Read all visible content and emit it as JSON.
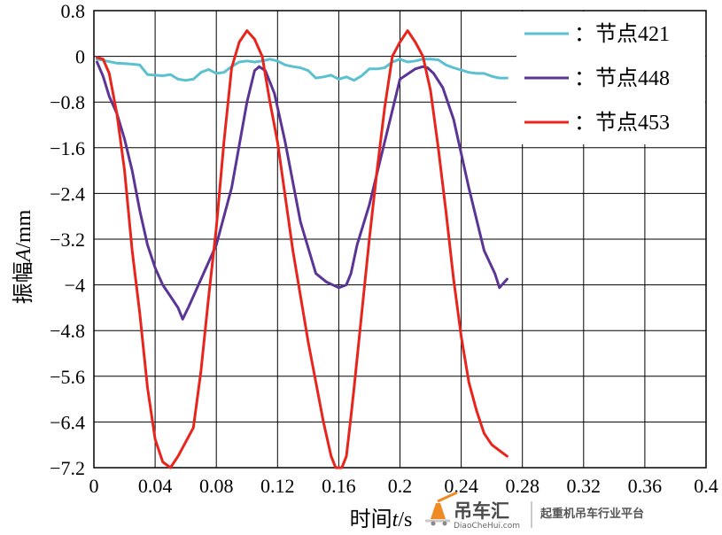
{
  "chart_data": {
    "type": "line",
    "xlabel_prefix": "时间",
    "xlabel_var": "t",
    "xlabel_unit": "/s",
    "ylabel_prefix": "振幅",
    "ylabel_var": "A",
    "ylabel_unit": "/mm",
    "xlim": [
      0,
      0.4
    ],
    "ylim": [
      -7.2,
      0.8
    ],
    "xticks": [
      "0",
      "0.04",
      "0.08",
      "0.12",
      "0.16",
      "0.2",
      "0.24",
      "0.28",
      "0.32",
      "0.36",
      "0.4"
    ],
    "yticks": [
      "0.8",
      "0",
      "−0.8",
      "−1.6",
      "−2.4",
      "−3.2",
      "−4",
      "−4.8",
      "−5.6",
      "−6.4",
      "−7.2"
    ],
    "xtick_values": [
      0,
      0.04,
      0.08,
      0.12,
      0.16,
      0.2,
      0.24,
      0.28,
      0.32,
      0.36,
      0.4
    ],
    "ytick_values": [
      0.8,
      0,
      -0.8,
      -1.6,
      -2.4,
      -3.2,
      -4,
      -4.8,
      -5.6,
      -6.4,
      -7.2
    ],
    "grid": true,
    "legend_position": "top-right",
    "series": [
      {
        "name": "：节点421",
        "color": "#5bc1d0",
        "x": [
          0.002,
          0.008,
          0.015,
          0.022,
          0.03,
          0.035,
          0.045,
          0.05,
          0.055,
          0.06,
          0.065,
          0.07,
          0.075,
          0.08,
          0.085,
          0.09,
          0.095,
          0.1,
          0.105,
          0.11,
          0.115,
          0.12,
          0.125,
          0.13,
          0.135,
          0.14,
          0.145,
          0.15,
          0.155,
          0.16,
          0.165,
          0.17,
          0.175,
          0.18,
          0.185,
          0.19,
          0.195,
          0.2,
          0.205,
          0.21,
          0.215,
          0.22,
          0.225,
          0.23,
          0.235,
          0.24,
          0.245,
          0.25,
          0.255,
          0.26,
          0.265,
          0.27
        ],
        "y": [
          -0.05,
          -0.08,
          -0.12,
          -0.13,
          -0.15,
          -0.32,
          -0.34,
          -0.32,
          -0.4,
          -0.42,
          -0.4,
          -0.28,
          -0.23,
          -0.3,
          -0.28,
          -0.18,
          -0.1,
          -0.08,
          -0.1,
          -0.08,
          -0.05,
          -0.08,
          -0.15,
          -0.18,
          -0.2,
          -0.25,
          -0.38,
          -0.36,
          -0.33,
          -0.4,
          -0.36,
          -0.42,
          -0.34,
          -0.22,
          -0.22,
          -0.2,
          -0.1,
          -0.05,
          -0.1,
          -0.08,
          -0.05,
          -0.05,
          -0.06,
          -0.15,
          -0.2,
          -0.24,
          -0.28,
          -0.3,
          -0.3,
          -0.35,
          -0.38,
          -0.38
        ]
      },
      {
        "name": "：节点448",
        "color": "#5b3596",
        "x": [
          0.002,
          0.006,
          0.01,
          0.015,
          0.02,
          0.025,
          0.03,
          0.035,
          0.04,
          0.045,
          0.05,
          0.055,
          0.058,
          0.062,
          0.07,
          0.08,
          0.09,
          0.1,
          0.105,
          0.108,
          0.112,
          0.118,
          0.125,
          0.135,
          0.145,
          0.152,
          0.16,
          0.165,
          0.168,
          0.172,
          0.18,
          0.19,
          0.2,
          0.21,
          0.215,
          0.218,
          0.222,
          0.228,
          0.235,
          0.245,
          0.255,
          0.262,
          0.265,
          0.27
        ],
        "y": [
          -0.1,
          -0.35,
          -0.7,
          -1.0,
          -1.45,
          -2.0,
          -2.7,
          -3.3,
          -3.7,
          -4.0,
          -4.2,
          -4.4,
          -4.6,
          -4.38,
          -3.9,
          -3.3,
          -2.3,
          -0.8,
          -0.25,
          -0.18,
          -0.25,
          -0.65,
          -1.5,
          -2.9,
          -3.8,
          -3.95,
          -4.05,
          -4.0,
          -3.8,
          -3.3,
          -2.6,
          -1.5,
          -0.4,
          -0.22,
          -0.18,
          -0.2,
          -0.3,
          -0.55,
          -1.1,
          -2.3,
          -3.4,
          -3.8,
          -4.05,
          -3.9
        ]
      },
      {
        "name": "：节点453",
        "color": "#e8251c",
        "x": [
          0.002,
          0.006,
          0.01,
          0.015,
          0.02,
          0.025,
          0.03,
          0.035,
          0.04,
          0.045,
          0.05,
          0.055,
          0.065,
          0.07,
          0.075,
          0.08,
          0.085,
          0.09,
          0.095,
          0.1,
          0.105,
          0.11,
          0.115,
          0.12,
          0.13,
          0.14,
          0.15,
          0.155,
          0.158,
          0.162,
          0.165,
          0.168,
          0.17,
          0.175,
          0.18,
          0.185,
          0.19,
          0.195,
          0.2,
          0.205,
          0.21,
          0.215,
          0.22,
          0.225,
          0.23,
          0.235,
          0.24,
          0.245,
          0.25,
          0.255,
          0.26,
          0.265,
          0.27
        ],
        "y": [
          -0.02,
          -0.05,
          -0.3,
          -1.0,
          -2.0,
          -3.4,
          -4.5,
          -5.8,
          -6.7,
          -7.1,
          -7.2,
          -7.0,
          -6.5,
          -5.5,
          -4.2,
          -3.0,
          -1.5,
          -0.2,
          0.25,
          0.45,
          0.3,
          0.0,
          -0.8,
          -1.5,
          -3.4,
          -5.0,
          -6.4,
          -7.0,
          -7.2,
          -7.2,
          -7.0,
          -6.3,
          -5.8,
          -4.5,
          -3.2,
          -2.0,
          -0.9,
          0.0,
          0.25,
          0.45,
          0.25,
          0.0,
          -0.6,
          -1.6,
          -2.7,
          -3.9,
          -4.9,
          -5.7,
          -6.2,
          -6.6,
          -6.8,
          -6.9,
          -7.0
        ]
      }
    ]
  },
  "watermark": {
    "brand_cn": "吊车汇",
    "brand_en": "DiaoCheHui.com",
    "slogan": "起重机吊车行业平台"
  }
}
